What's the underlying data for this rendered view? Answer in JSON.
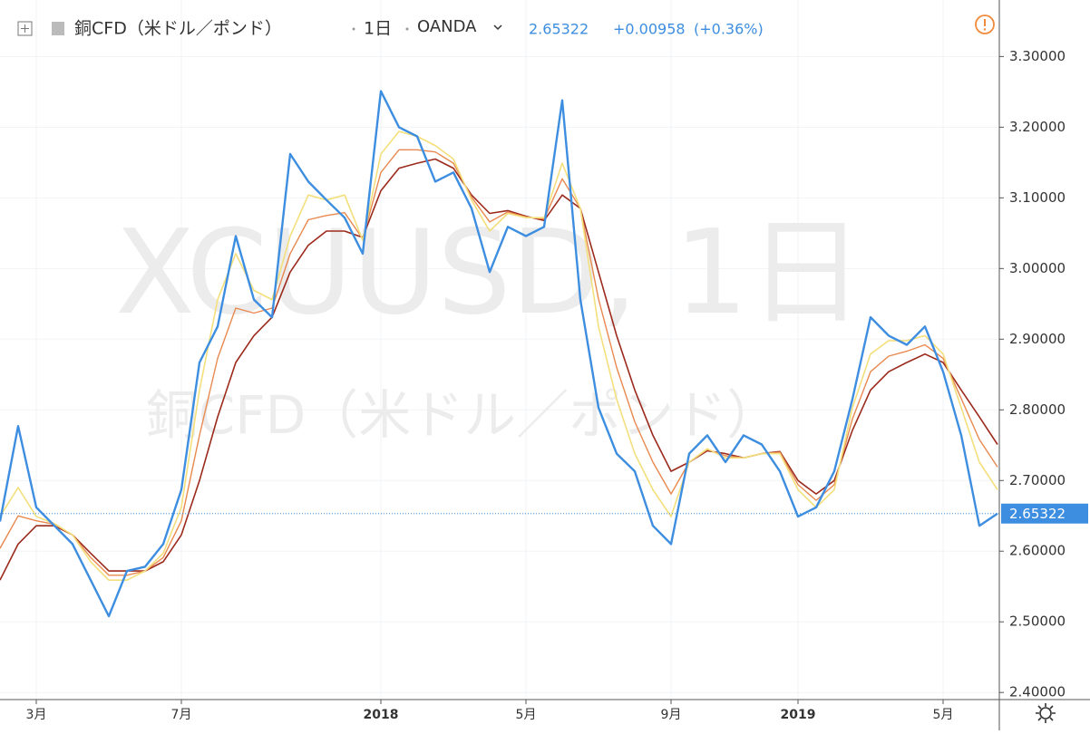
{
  "chart_data": {
    "type": "line",
    "title": "銅CFD（米ドル／ポンド）",
    "interval": "1日",
    "source": "OANDA",
    "watermark": "XCUUSD, 1日",
    "last_price": 2.65322,
    "last_price_label": "2.65322",
    "change": "+0.00958",
    "change_percent": "(+0.36%)",
    "categories": [
      null,
      null,
      "3月",
      null,
      null,
      null,
      null,
      null,
      null,
      null,
      "7月",
      null,
      null,
      null,
      null,
      null,
      null,
      null,
      null,
      null,
      null,
      "2018",
      null,
      null,
      null,
      null,
      null,
      null,
      null,
      "5月",
      null,
      null,
      null,
      null,
      null,
      null,
      null,
      "9月",
      null,
      null,
      null,
      null,
      null,
      null,
      "2019",
      null,
      null,
      null,
      null,
      null,
      null,
      null,
      "5月",
      null,
      null,
      null
    ],
    "series": [
      {
        "color": "#3d8ee0",
        "width": 2.4,
        "values": [
          2.642,
          2.777,
          2.662,
          2.636,
          2.61,
          2.559,
          2.508,
          2.572,
          2.578,
          2.61,
          2.687,
          2.867,
          2.918,
          3.046,
          2.956,
          2.931,
          3.162,
          3.123,
          3.097,
          3.072,
          3.021,
          3.251,
          3.2,
          3.187,
          3.123,
          3.136,
          3.085,
          2.995,
          3.059,
          3.046,
          3.059,
          3.238,
          2.956,
          2.803,
          2.738,
          2.713,
          2.636,
          2.61,
          2.738,
          2.764,
          2.726,
          2.764,
          2.751,
          2.713,
          2.649,
          2.662,
          2.713,
          2.815,
          2.931,
          2.905,
          2.892,
          2.918,
          2.854,
          2.764,
          2.636,
          2.65322
        ]
      },
      {
        "color": "#f3df7c",
        "width": 1.6,
        "values": [
          2.649,
          2.69,
          2.649,
          2.639,
          2.623,
          2.585,
          2.559,
          2.559,
          2.572,
          2.597,
          2.662,
          2.828,
          2.956,
          3.021,
          2.969,
          2.956,
          3.046,
          3.104,
          3.097,
          3.104,
          3.04,
          3.162,
          3.194,
          3.187,
          3.174,
          3.155,
          3.097,
          3.053,
          3.078,
          3.072,
          3.072,
          3.149,
          3.085,
          2.918,
          2.815,
          2.738,
          2.687,
          2.649,
          2.726,
          2.745,
          2.732,
          2.732,
          2.738,
          2.738,
          2.687,
          2.662,
          2.687,
          2.803,
          2.879,
          2.898,
          2.898,
          2.905,
          2.879,
          2.803,
          2.726,
          2.687
        ]
      },
      {
        "color": "#e8894f",
        "width": 1.4,
        "values": [
          2.604,
          2.65,
          2.643,
          2.638,
          2.623,
          2.591,
          2.566,
          2.566,
          2.572,
          2.591,
          2.643,
          2.764,
          2.873,
          2.944,
          2.937,
          2.944,
          3.021,
          3.069,
          3.075,
          3.079,
          3.042,
          3.136,
          3.168,
          3.168,
          3.165,
          3.149,
          3.101,
          3.066,
          3.08,
          3.073,
          3.07,
          3.127,
          3.085,
          2.957,
          2.86,
          2.783,
          2.726,
          2.681,
          2.726,
          2.744,
          2.735,
          2.732,
          2.738,
          2.74,
          2.694,
          2.672,
          2.694,
          2.787,
          2.854,
          2.876,
          2.883,
          2.892,
          2.873,
          2.816,
          2.758,
          2.719
        ]
      },
      {
        "color": "#9b2a1c",
        "width": 1.6,
        "values": [
          2.559,
          2.61,
          2.636,
          2.636,
          2.623,
          2.597,
          2.572,
          2.572,
          2.572,
          2.585,
          2.623,
          2.7,
          2.79,
          2.867,
          2.905,
          2.931,
          2.995,
          3.033,
          3.053,
          3.053,
          3.044,
          3.11,
          3.142,
          3.149,
          3.155,
          3.142,
          3.104,
          3.078,
          3.082,
          3.074,
          3.068,
          3.104,
          3.085,
          2.995,
          2.905,
          2.828,
          2.764,
          2.713,
          2.726,
          2.742,
          2.738,
          2.732,
          2.738,
          2.741,
          2.7,
          2.681,
          2.7,
          2.771,
          2.828,
          2.854,
          2.867,
          2.879,
          2.867,
          2.828,
          2.79,
          2.751
        ]
      }
    ],
    "ylim": [
      2.39,
      3.38
    ],
    "yticks": [
      {
        "value": 2.4,
        "label": "2.40000"
      },
      {
        "value": 2.5,
        "label": "2.50000"
      },
      {
        "value": 2.6,
        "label": "2.60000"
      },
      {
        "value": 2.7,
        "label": "2.70000"
      },
      {
        "value": 2.8,
        "label": "2.80000"
      },
      {
        "value": 2.9,
        "label": "2.90000"
      },
      {
        "value": 3.0,
        "label": "3.00000"
      },
      {
        "value": 3.1,
        "label": "3.10000"
      },
      {
        "value": 3.2,
        "label": "3.20000"
      },
      {
        "value": 3.3,
        "label": "3.30000"
      }
    ],
    "grid": true
  }
}
